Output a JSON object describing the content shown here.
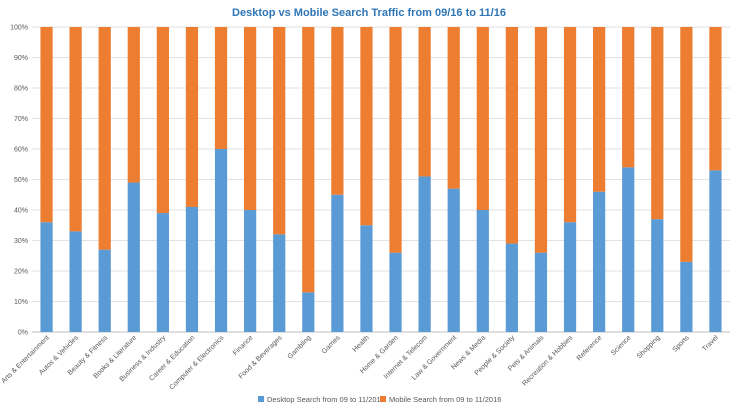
{
  "chart_data": {
    "type": "bar",
    "stacked": true,
    "percent_stacked": true,
    "title": "Desktop vs Mobile Search Traffic from 09/16 to 11/16",
    "xlabel": "",
    "ylabel": "",
    "ylim": [
      0,
      100
    ],
    "yticks": [
      "0%",
      "10%",
      "20%",
      "30%",
      "40%",
      "50%",
      "60%",
      "70%",
      "80%",
      "90%",
      "100%"
    ],
    "grid": true,
    "legend_position": "bottom",
    "categories": [
      "Arts & Entertainment",
      "Autos & Vehicles",
      "Beauty & Fitness",
      "Books & Literature",
      "Business & Industry",
      "Career & Education",
      "Computer & Electronics",
      "Finance",
      "Food & Beverages",
      "Gambling",
      "Games",
      "Health",
      "Home & Garden",
      "Internet & Telecom",
      "Law & Government",
      "News & Media",
      "People & Society",
      "Pets & Animals",
      "Recreation & Hobbies",
      "Reference",
      "Science",
      "Shopping",
      "Sports",
      "Travel"
    ],
    "series": [
      {
        "name": "Desktop Search from 09 to 11/2016",
        "color": "#5b9bd5",
        "values": [
          36,
          33,
          27,
          49,
          39,
          41,
          60,
          40,
          32,
          13,
          45,
          35,
          26,
          51,
          47,
          40,
          29,
          26,
          36,
          46,
          54,
          37,
          23,
          53
        ]
      },
      {
        "name": "Mobile Search from 09 to 11/2016",
        "color": "#ed7d31",
        "values": [
          64,
          67,
          73,
          51,
          61,
          59,
          40,
          60,
          68,
          87,
          55,
          65,
          74,
          49,
          53,
          60,
          71,
          74,
          64,
          54,
          46,
          63,
          77,
          47
        ]
      }
    ]
  }
}
